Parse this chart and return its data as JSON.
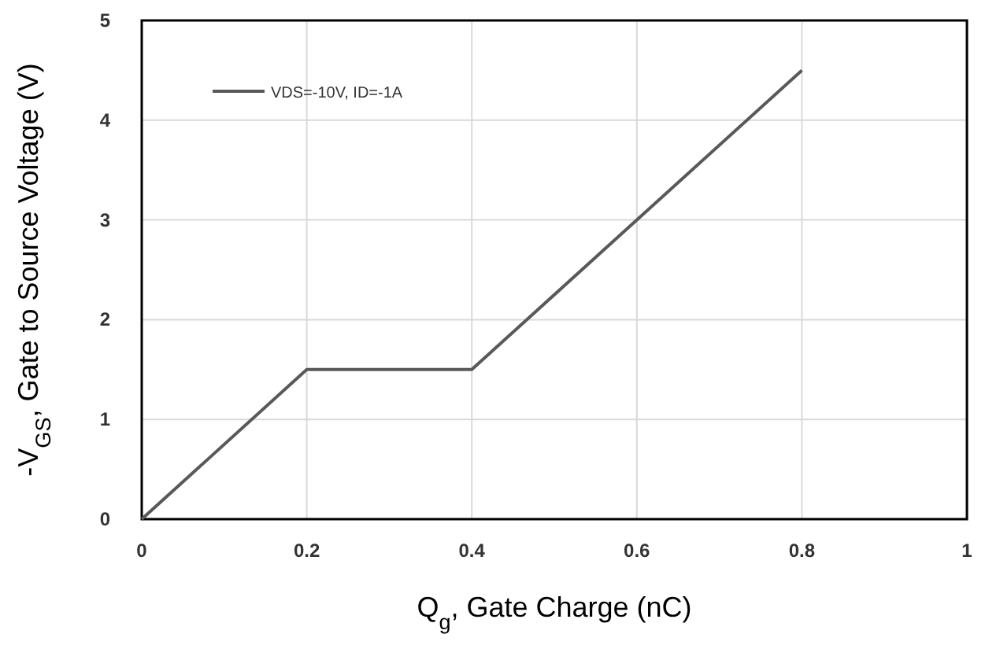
{
  "chart_data": {
    "type": "line",
    "xlabel": "Q$_{g}$, Gate Charge (nC)",
    "ylabel": "-V$_{GS}$, Gate to Source Voltage (V)",
    "x": [
      0,
      0.2,
      0.4,
      0.8
    ],
    "series": [
      {
        "name": "VDS=-10V, ID=-1A",
        "color": "#595959",
        "values": [
          0,
          1.5,
          1.5,
          4.5
        ]
      }
    ],
    "xlim": [
      0,
      1
    ],
    "xticks": [
      0,
      0.2,
      0.4,
      0.6,
      0.8,
      1
    ],
    "ylim": [
      0,
      5
    ],
    "yticks": [
      0,
      1,
      2,
      3,
      4,
      5
    ],
    "grid": true,
    "legend": "top left",
    "marker": "none",
    "line_style": "solid"
  }
}
